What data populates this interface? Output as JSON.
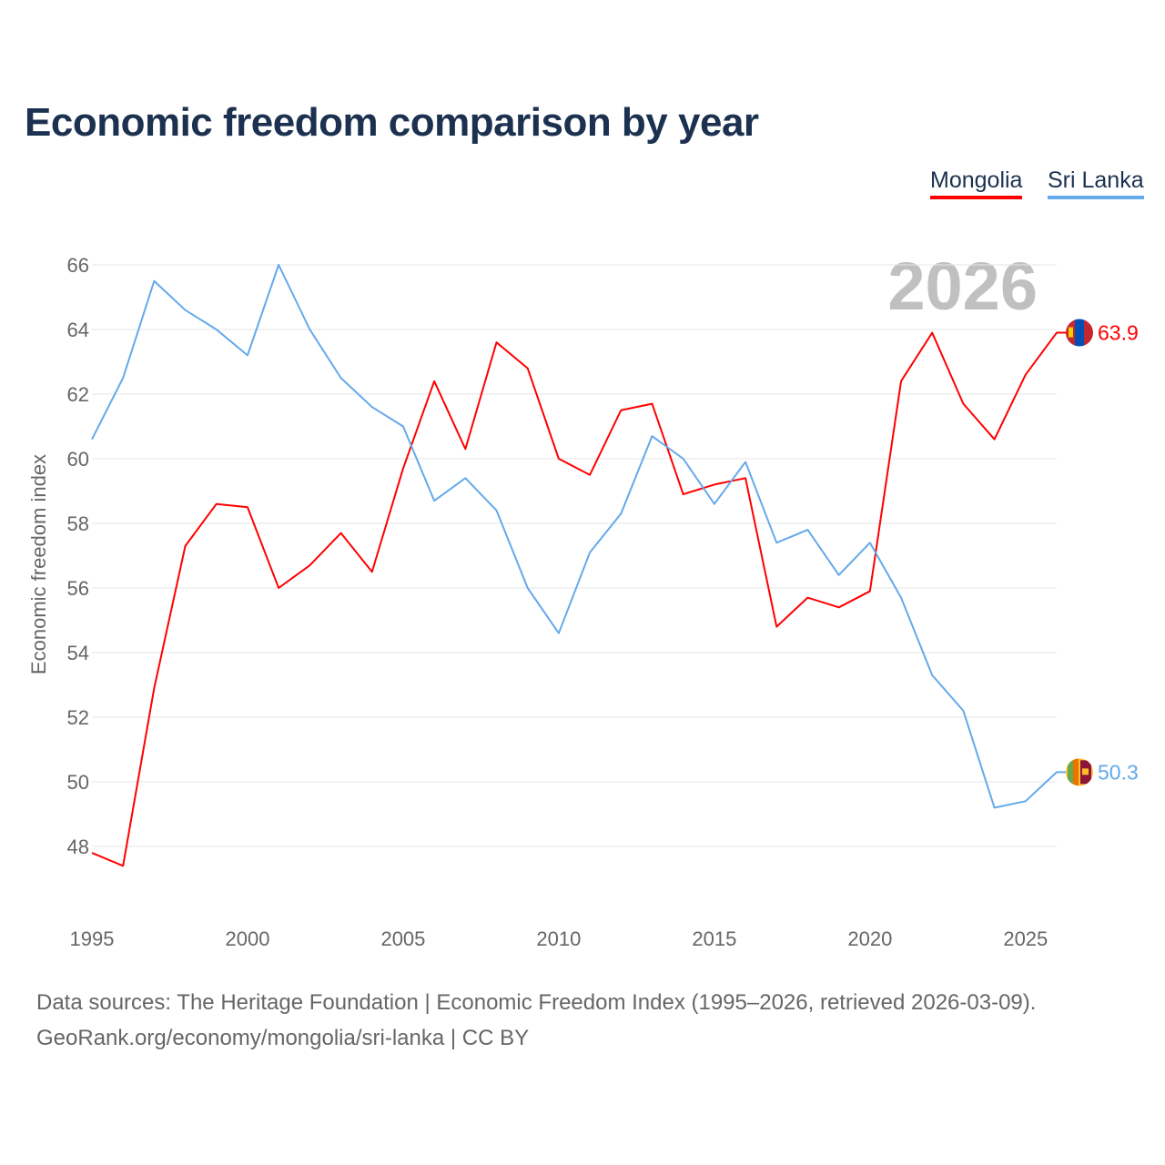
{
  "chart_data": {
    "type": "line",
    "title": "Economic freedom comparison by year",
    "xlabel": "",
    "ylabel": "Economic freedom index",
    "year_watermark": "2026",
    "x": [
      1995,
      1996,
      1997,
      1998,
      1999,
      2000,
      2001,
      2002,
      2003,
      2004,
      2005,
      2006,
      2007,
      2008,
      2009,
      2010,
      2011,
      2012,
      2013,
      2014,
      2015,
      2016,
      2017,
      2018,
      2019,
      2020,
      2021,
      2022,
      2023,
      2024,
      2025,
      2026
    ],
    "xlim": [
      1995,
      2026
    ],
    "ylim": [
      46,
      67
    ],
    "x_ticks": [
      "1995",
      "2000",
      "2005",
      "2010",
      "2015",
      "2020",
      "2025"
    ],
    "y_ticks": [
      "48",
      "50",
      "52",
      "54",
      "56",
      "58",
      "60",
      "62",
      "64",
      "66"
    ],
    "grid": true,
    "legend_position": "top-right",
    "series": [
      {
        "name": "Mongolia",
        "color": "#ff0000",
        "end_label": "63.9",
        "flag": "mongolia-flag",
        "values": [
          47.8,
          47.4,
          52.9,
          57.3,
          58.6,
          58.5,
          56.0,
          56.7,
          57.7,
          56.5,
          59.7,
          62.4,
          60.3,
          63.6,
          62.8,
          60.0,
          59.5,
          61.5,
          61.7,
          58.9,
          59.2,
          59.4,
          54.8,
          55.7,
          55.4,
          55.9,
          62.4,
          63.9,
          61.7,
          60.6,
          62.6,
          63.9
        ]
      },
      {
        "name": "Sri Lanka",
        "color": "#64a9eb",
        "end_label": "50.3",
        "flag": "sri-lanka-flag",
        "values": [
          60.6,
          62.5,
          65.5,
          64.6,
          64.0,
          63.2,
          66.0,
          64.0,
          62.5,
          61.6,
          61.0,
          58.7,
          59.4,
          58.4,
          56.0,
          54.6,
          57.1,
          58.3,
          60.7,
          60.0,
          58.6,
          59.9,
          57.4,
          57.8,
          56.4,
          57.4,
          55.7,
          53.3,
          52.2,
          49.2,
          49.4,
          50.3
        ]
      }
    ]
  },
  "footer": {
    "source": "Data sources: The Heritage Foundation | Economic Freedom Index (1995–2026, retrieved 2026-03-09).",
    "credit": "GeoRank.org/economy/mongolia/sri-lanka | CC BY"
  }
}
